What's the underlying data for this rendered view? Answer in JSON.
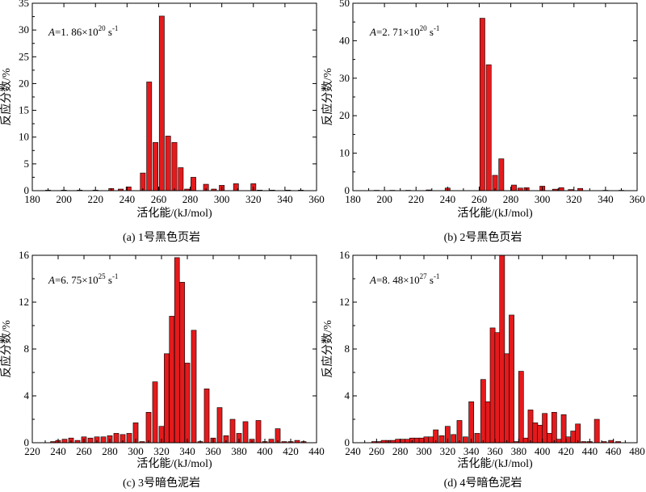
{
  "chart_data": [
    {
      "type": "bar",
      "caption": "(a) 1号黑色页岩",
      "param_prefix": "A",
      "param_text": "=1. 86×10",
      "param_exp": "20",
      "param_unit": " s",
      "param_unit_exp": "-1",
      "xlabel": "活化能/(kJ/mol)",
      "ylabel": "反应分数/%",
      "xlim": [
        180,
        360
      ],
      "ylim": [
        0,
        35
      ],
      "xticks": [
        180,
        200,
        220,
        240,
        260,
        280,
        300,
        320,
        340,
        360
      ],
      "yticks": [
        0,
        5,
        10,
        15,
        20,
        25,
        30,
        35
      ],
      "bar_width": 3.2,
      "x": [
        190,
        200,
        210,
        220,
        230,
        236,
        241,
        250,
        254,
        258,
        262,
        266,
        270,
        274,
        278,
        282,
        290,
        295,
        300,
        309,
        320,
        324,
        332,
        342,
        350
      ],
      "values": [
        0.1,
        0.1,
        0.1,
        0.1,
        0.4,
        0.3,
        0.7,
        3.3,
        20.3,
        9.0,
        32.6,
        10.2,
        9.0,
        4.3,
        0.3,
        2.5,
        1.2,
        0.3,
        1.0,
        1.3,
        1.3,
        0.1,
        0.1,
        0.1,
        0.1
      ]
    },
    {
      "type": "bar",
      "caption": "(b) 2号黑色页岩",
      "param_prefix": "A",
      "param_text": "=2. 71×10",
      "param_exp": "20",
      "param_unit": " s",
      "param_unit_exp": "-1",
      "xlabel": "活化能/(kJ/mol)",
      "ylabel": "反应分数/%",
      "xlim": [
        180,
        360
      ],
      "ylim": [
        0,
        50
      ],
      "xticks": [
        180,
        200,
        220,
        240,
        260,
        280,
        300,
        320,
        340,
        360
      ],
      "yticks": [
        0,
        10,
        20,
        30,
        40,
        50
      ],
      "bar_width": 3.2,
      "x": [
        195,
        205,
        215,
        228,
        240,
        262,
        266,
        270,
        274,
        282,
        286,
        290,
        300,
        308,
        312,
        318,
        324,
        340,
        350
      ],
      "values": [
        0.1,
        0.1,
        0.1,
        0.2,
        0.7,
        46.0,
        33.6,
        4.1,
        8.5,
        1.5,
        0.7,
        0.8,
        1.2,
        0.4,
        0.8,
        0.3,
        0.6,
        0.1,
        0.1
      ]
    },
    {
      "type": "bar",
      "caption": "(c) 3号暗色泥岩",
      "param_prefix": "A",
      "param_text": "=6. 75×10",
      "param_exp": "25",
      "param_unit": " s",
      "param_unit_exp": "-1",
      "xlabel": "活化能/(kJ/mol)",
      "ylabel": "反应分数/%",
      "xlim": [
        220,
        440
      ],
      "ylim": [
        0,
        16
      ],
      "xticks": [
        220,
        240,
        260,
        280,
        300,
        320,
        340,
        360,
        380,
        400,
        420,
        440
      ],
      "yticks": [
        0,
        4,
        8,
        12,
        16
      ],
      "bar_width": 3.8,
      "x": [
        236,
        240,
        245,
        250,
        255,
        260,
        265,
        270,
        275,
        280,
        285,
        290,
        295,
        300,
        305,
        310,
        315,
        320,
        324,
        328,
        332,
        336,
        340,
        345,
        350,
        355,
        360,
        365,
        370,
        375,
        380,
        385,
        390,
        395,
        400,
        405,
        410,
        415,
        420,
        425,
        430
      ],
      "values": [
        0.1,
        0.2,
        0.3,
        0.4,
        0.2,
        0.5,
        0.4,
        0.5,
        0.5,
        0.6,
        0.8,
        0.7,
        0.8,
        1.7,
        0.1,
        2.6,
        5.2,
        1.4,
        7.6,
        10.8,
        15.8,
        13.7,
        6.8,
        9.6,
        0.1,
        4.6,
        0.4,
        3.0,
        0.6,
        2.0,
        0.8,
        1.8,
        0.3,
        1.9,
        0.1,
        0.3,
        1.2,
        0.1,
        0.1,
        0.2,
        0.1
      ],
      "note": "bars positioned as rendered"
    },
    {
      "type": "bar",
      "caption": "(d) 4号暗色泥岩",
      "param_prefix": "A",
      "param_text": "=8. 48×10",
      "param_exp": "27",
      "param_unit": " s",
      "param_unit_exp": "-1",
      "xlabel": "活化能/(kJ/mol)",
      "ylabel": "反应分数/%",
      "xlim": [
        240,
        480
      ],
      "ylim": [
        0,
        16
      ],
      "xticks": [
        240,
        260,
        280,
        300,
        320,
        340,
        360,
        380,
        400,
        420,
        440,
        460,
        480
      ],
      "yticks": [
        0,
        4,
        8,
        12,
        16
      ],
      "bar_width": 4.2,
      "x": [
        258,
        262,
        266,
        270,
        274,
        278,
        282,
        286,
        290,
        294,
        298,
        302,
        306,
        310,
        315,
        320,
        325,
        330,
        335,
        340,
        345,
        350,
        354,
        358,
        362,
        366,
        370,
        374,
        378,
        382,
        386,
        390,
        394,
        398,
        402,
        406,
        410,
        414,
        418,
        422,
        426,
        430,
        435,
        440,
        446,
        452,
        458,
        464
      ],
      "values": [
        0.1,
        0.1,
        0.2,
        0.2,
        0.2,
        0.3,
        0.3,
        0.3,
        0.4,
        0.4,
        0.4,
        0.5,
        0.5,
        1.1,
        0.6,
        1.4,
        0.7,
        1.9,
        0.5,
        3.5,
        0.8,
        5.4,
        3.5,
        9.8,
        9.4,
        16.0,
        7.6,
        10.9,
        0.1,
        6.1,
        0.4,
        2.8,
        1.7,
        1.5,
        2.5,
        0.8,
        2.6,
        0.3,
        2.4,
        0.5,
        1.0,
        1.6,
        0.1,
        0.1,
        2.0,
        0.1,
        0.2,
        0.1
      ]
    }
  ]
}
